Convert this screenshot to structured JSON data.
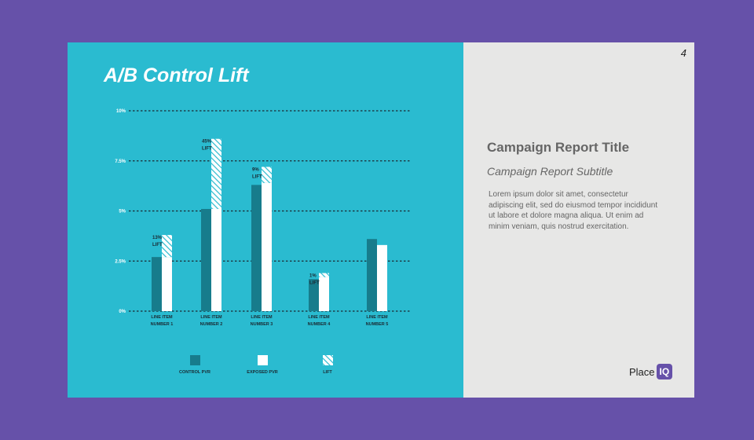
{
  "page_number": "4",
  "title": "A/B Control Lift",
  "report": {
    "title": "Campaign Report Title",
    "subtitle": "Campaign Report Subtitle",
    "body": "Lorem ipsum dolor sit amet, consectetur adipiscing elit, sed do eiusmod tempor incididunt ut labore et dolore magna aliqua. Ut enim ad minim veniam, quis nostrud exercitation."
  },
  "logo": {
    "text": "Place",
    "box": "IQ"
  },
  "colors": {
    "background": "#6651a9",
    "panel": "#2abbd0",
    "control": "#177c8c",
    "exposed": "#ffffff",
    "lift_stripe": "#2abbd0"
  },
  "chart_data": {
    "type": "bar",
    "categories": [
      "LINE ITEM NUMBER 1",
      "LINE ITEM NUMBER 2",
      "LINE ITEM NUMBER 3",
      "LINE ITEM NUMBER 4",
      "LINE ITEM NUMBER 5"
    ],
    "yticks": [
      "0%",
      "2.5%",
      "5%",
      "7.5%",
      "10%"
    ],
    "ylim": [
      0,
      10
    ],
    "grid": true,
    "series": [
      {
        "name": "CONTROL PVR",
        "values": [
          2.7,
          5.1,
          6.3,
          1.6,
          3.6
        ]
      },
      {
        "name": "EXPOSED PVR",
        "values": [
          2.7,
          5.1,
          6.4,
          1.7,
          3.3
        ]
      },
      {
        "name": "LIFT",
        "values": [
          1.1,
          3.5,
          0.8,
          0.2,
          0
        ]
      }
    ],
    "annotations": [
      "13% LIFT",
      "45% LIFT",
      "9% LIFT",
      "1% LIFT",
      ""
    ],
    "legend": [
      "CONTROL PVR",
      "EXPOSED PVR",
      "LIFT"
    ],
    "legend_position": "bottom"
  }
}
